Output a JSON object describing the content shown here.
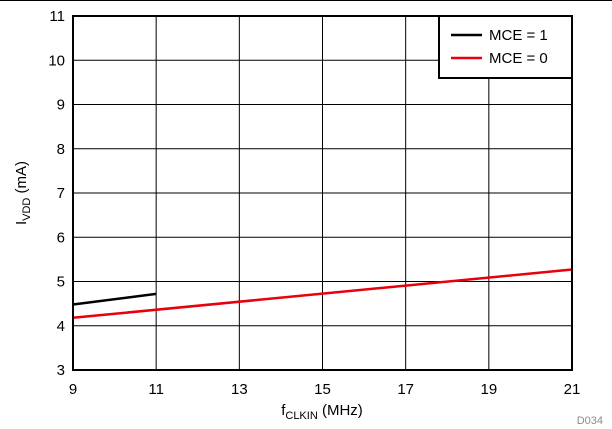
{
  "chart_data": {
    "type": "line",
    "xlabel": {
      "main": "f",
      "sub": "CLKIN",
      "unit": " (MHz)"
    },
    "ylabel": {
      "main": "I",
      "sub": "VDD",
      "unit": " (mA)"
    },
    "xlim": [
      9,
      21
    ],
    "ylim": [
      3,
      11
    ],
    "xticks": [
      9,
      11,
      13,
      15,
      17,
      19,
      21
    ],
    "yticks": [
      3,
      4,
      5,
      6,
      7,
      8,
      9,
      10,
      11
    ],
    "grid": true,
    "legend_position": "top-right",
    "series": [
      {
        "name": "MCE = 1",
        "color": "#000000",
        "x": [
          9,
          11
        ],
        "y": [
          4.48,
          4.72
        ]
      },
      {
        "name": "MCE = 0",
        "color": "#e8000b",
        "x": [
          9,
          21
        ],
        "y": [
          4.18,
          5.27
        ]
      }
    ],
    "footnote": "D034"
  }
}
